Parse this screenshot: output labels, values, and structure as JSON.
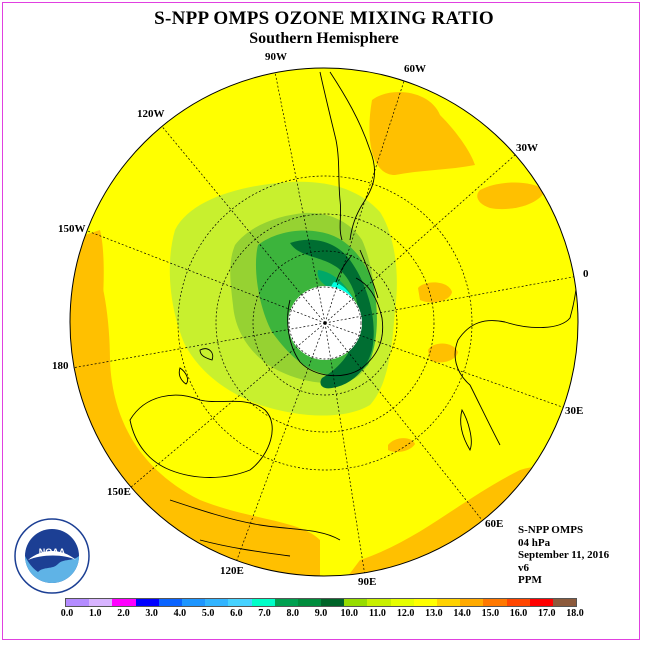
{
  "header": {
    "title": "S-NPP OMPS OZONE MIXING RATIO",
    "subtitle": "Southern Hemisphere"
  },
  "map": {
    "projection": "polar stereographic, south pole centered",
    "longitude_labels": [
      "90W",
      "60W",
      "30W",
      "0",
      "30E",
      "60E",
      "90E",
      "120E",
      "150E",
      "180",
      "150W",
      "120W"
    ],
    "colors": {
      "background_field": "#ffff00",
      "orange_band": "#ffc000",
      "light_green": "#c8f02e",
      "mid_green": "#96d232",
      "green": "#3cb43c",
      "dark_green": "#006e32",
      "teal": "#00c8a0",
      "cyan": "#00ffe0",
      "missing_data": "#ffffff"
    }
  },
  "info": {
    "instrument": "S-NPP OMPS",
    "level": "04 hPa",
    "date": "September 11, 2016",
    "version": "v6",
    "units": "PPM"
  },
  "logo": {
    "text": "NOAA",
    "ring_text": "NATIONAL OCEANIC AND ATMOSPHERIC ADMINISTRATION · U.S. DEPARTMENT OF COMMERCE"
  },
  "colorbar": {
    "colors": [
      "#b48cff",
      "#d8b4ff",
      "#ff00ff",
      "#0000ff",
      "#0a64ff",
      "#1e96ff",
      "#32b4ff",
      "#46d2ff",
      "#00ffc8",
      "#00a050",
      "#008c3c",
      "#006428",
      "#96dc00",
      "#c8f000",
      "#e6ff00",
      "#ffff00",
      "#ffd200",
      "#ffaa00",
      "#ff7800",
      "#ff4600",
      "#ff0000",
      "#8c5a3c"
    ],
    "tick_labels": [
      "0.0",
      "1.0",
      "2.0",
      "3.0",
      "4.0",
      "5.0",
      "6.0",
      "7.0",
      "8.0",
      "9.0",
      "10.0",
      "11.0",
      "12.0",
      "13.0",
      "14.0",
      "15.0",
      "16.0",
      "17.0",
      "18.0"
    ]
  }
}
